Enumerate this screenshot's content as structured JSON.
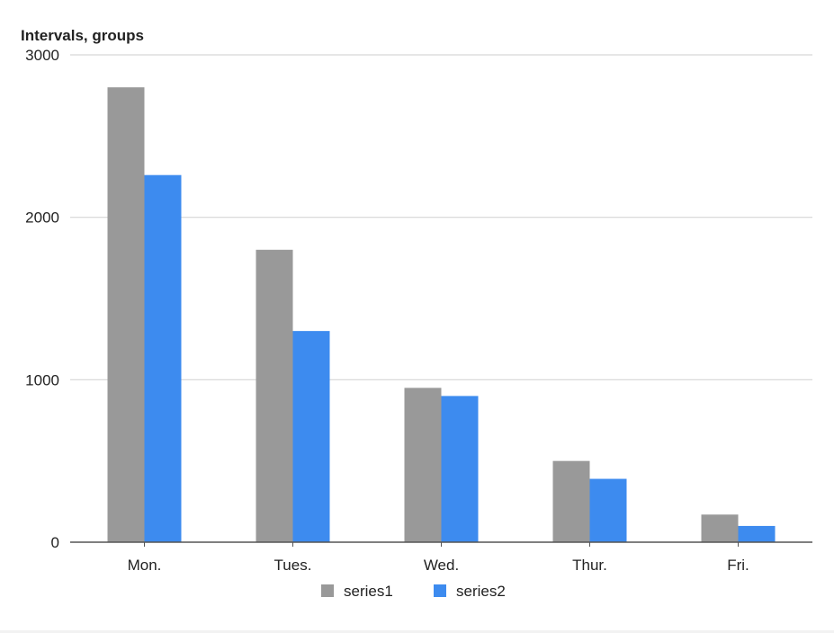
{
  "chart_data": {
    "type": "bar",
    "ylabel": "Intervals, groups",
    "categories": [
      "Mon.",
      "Tues.",
      "Wed.",
      "Thur.",
      "Fri."
    ],
    "series": [
      {
        "name": "series1",
        "color": "#999999",
        "values": [
          2800,
          1800,
          950,
          500,
          170
        ]
      },
      {
        "name": "series2",
        "color": "#3d8bef",
        "values": [
          2260,
          1300,
          900,
          390,
          100
        ]
      }
    ],
    "ylim": [
      0,
      3000
    ],
    "yticks": [
      "0",
      "1000",
      "2000",
      "3000"
    ],
    "grid": true,
    "legend": "bottom-center"
  }
}
